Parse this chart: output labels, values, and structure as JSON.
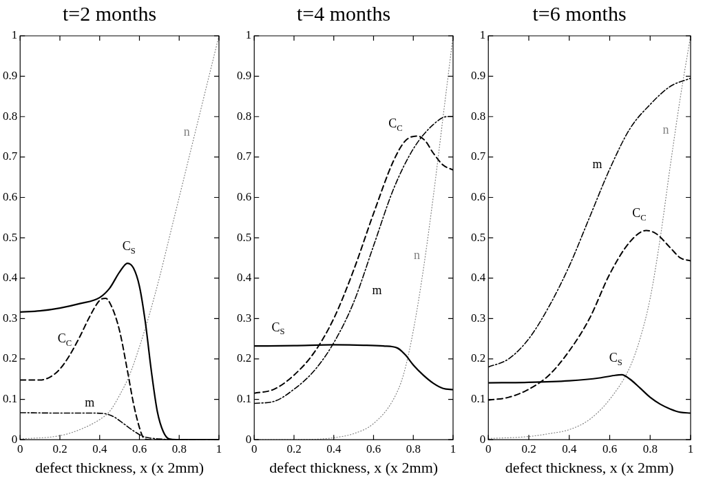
{
  "chart_data": [
    {
      "type": "line",
      "title": "t=2 months",
      "xlabel": "defect thickness, x (x 2mm)",
      "xlim": [
        0,
        1
      ],
      "xticks": [
        0,
        0.2,
        0.4,
        0.6,
        0.8,
        1
      ],
      "ylim": [
        0,
        1
      ],
      "yticks": [
        0,
        0.1,
        0.2,
        0.3,
        0.4,
        0.5,
        0.6,
        0.7,
        0.8,
        0.9,
        1
      ],
      "grid": false,
      "legend": false,
      "marker": "none",
      "series": [
        {
          "name": "C$_{S}$",
          "color": "#000000",
          "line_style": "solid",
          "x": [
            0,
            0.1,
            0.2,
            0.3,
            0.4,
            0.45,
            0.5,
            0.54,
            0.57,
            0.6,
            0.63,
            0.66,
            0.69,
            0.72,
            0.75,
            0.8,
            1
          ],
          "values": [
            0.316,
            0.319,
            0.326,
            0.337,
            0.352,
            0.375,
            0.415,
            0.437,
            0.425,
            0.38,
            0.29,
            0.17,
            0.07,
            0.02,
            0.002,
            0,
            0
          ]
        },
        {
          "name": "C$_{C}$",
          "color": "#000000",
          "line_style": "dashed",
          "x": [
            0,
            0.1,
            0.15,
            0.2,
            0.25,
            0.3,
            0.35,
            0.4,
            0.43,
            0.46,
            0.5,
            0.54,
            0.57,
            0.6,
            0.62,
            0.65,
            1
          ],
          "values": [
            0.148,
            0.148,
            0.155,
            0.175,
            0.21,
            0.255,
            0.305,
            0.345,
            0.35,
            0.33,
            0.27,
            0.17,
            0.09,
            0.03,
            0.005,
            0,
            0
          ]
        },
        {
          "name": "m",
          "color": "#000000",
          "line_style": "dashdot",
          "x": [
            0,
            0.2,
            0.35,
            0.42,
            0.47,
            0.52,
            0.57,
            0.62,
            0.7,
            0.8,
            1
          ],
          "values": [
            0.067,
            0.066,
            0.066,
            0.065,
            0.057,
            0.04,
            0.022,
            0.008,
            0.002,
            0,
            0
          ]
        },
        {
          "name": "n",
          "color": "#808080",
          "line_style": "dotted",
          "x": [
            0,
            0.2,
            0.3,
            0.4,
            0.45,
            0.5,
            0.55,
            0.6,
            0.65,
            0.7,
            0.75,
            0.8,
            0.85,
            0.9,
            0.95,
            1
          ],
          "values": [
            0.002,
            0.01,
            0.025,
            0.05,
            0.07,
            0.11,
            0.16,
            0.23,
            0.31,
            0.4,
            0.5,
            0.6,
            0.7,
            0.8,
            0.9,
            1
          ]
        }
      ]
    },
    {
      "type": "line",
      "title": "t=4 months",
      "xlabel": "defect thickness, x (x 2mm)",
      "xlim": [
        0,
        1
      ],
      "xticks": [
        0,
        0.2,
        0.4,
        0.6,
        0.8,
        1
      ],
      "ylim": [
        0,
        1
      ],
      "yticks": [
        0,
        0.1,
        0.2,
        0.3,
        0.4,
        0.5,
        0.6,
        0.7,
        0.8,
        0.9,
        1
      ],
      "grid": false,
      "legend": false,
      "marker": "none",
      "series": [
        {
          "name": "C$_{S}$",
          "color": "#000000",
          "line_style": "solid",
          "x": [
            0,
            0.2,
            0.4,
            0.55,
            0.65,
            0.72,
            0.76,
            0.8,
            0.85,
            0.9,
            0.95,
            1
          ],
          "values": [
            0.232,
            0.233,
            0.235,
            0.234,
            0.232,
            0.227,
            0.21,
            0.185,
            0.16,
            0.14,
            0.127,
            0.124
          ]
        },
        {
          "name": "C$_{C}$",
          "color": "#000000",
          "line_style": "dashed",
          "x": [
            0,
            0.1,
            0.2,
            0.3,
            0.4,
            0.5,
            0.6,
            0.7,
            0.76,
            0.82,
            0.86,
            0.9,
            0.95,
            1
          ],
          "values": [
            0.115,
            0.125,
            0.16,
            0.215,
            0.3,
            0.42,
            0.56,
            0.69,
            0.74,
            0.752,
            0.74,
            0.71,
            0.68,
            0.668
          ]
        },
        {
          "name": "m",
          "color": "#000000",
          "line_style": "dashdot",
          "x": [
            0,
            0.1,
            0.2,
            0.3,
            0.4,
            0.5,
            0.6,
            0.7,
            0.8,
            0.9,
            0.97,
            1
          ],
          "values": [
            0.09,
            0.095,
            0.125,
            0.17,
            0.24,
            0.34,
            0.48,
            0.62,
            0.72,
            0.78,
            0.8,
            0.8
          ]
        },
        {
          "name": "n",
          "color": "#808080",
          "line_style": "dotted",
          "x": [
            0,
            0.3,
            0.4,
            0.5,
            0.6,
            0.7,
            0.75,
            0.8,
            0.85,
            0.9,
            0.95,
            1
          ],
          "values": [
            0,
            0.001,
            0.005,
            0.015,
            0.04,
            0.1,
            0.16,
            0.27,
            0.42,
            0.6,
            0.8,
            1
          ]
        }
      ]
    },
    {
      "type": "line",
      "title": "t=6 months",
      "xlabel": "defect thickness, x (x 2mm)",
      "xlim": [
        0,
        1
      ],
      "xticks": [
        0,
        0.2,
        0.4,
        0.6,
        0.8,
        1
      ],
      "ylim": [
        0,
        1
      ],
      "yticks": [
        0,
        0.1,
        0.2,
        0.3,
        0.4,
        0.5,
        0.6,
        0.7,
        0.8,
        0.9,
        1
      ],
      "grid": false,
      "legend": false,
      "marker": "none",
      "series": [
        {
          "name": "C$_{S}$",
          "color": "#000000",
          "line_style": "solid",
          "x": [
            0,
            0.2,
            0.4,
            0.55,
            0.62,
            0.66,
            0.7,
            0.75,
            0.8,
            0.85,
            0.9,
            0.95,
            1
          ],
          "values": [
            0.141,
            0.142,
            0.146,
            0.153,
            0.159,
            0.161,
            0.15,
            0.128,
            0.105,
            0.088,
            0.076,
            0.068,
            0.066
          ]
        },
        {
          "name": "C$_{C}$",
          "color": "#000000",
          "line_style": "dashed",
          "x": [
            0,
            0.1,
            0.2,
            0.3,
            0.4,
            0.5,
            0.6,
            0.7,
            0.78,
            0.83,
            0.9,
            0.95,
            1
          ],
          "values": [
            0.098,
            0.105,
            0.125,
            0.16,
            0.22,
            0.3,
            0.41,
            0.49,
            0.518,
            0.51,
            0.475,
            0.45,
            0.443
          ]
        },
        {
          "name": "m",
          "color": "#000000",
          "line_style": "dashdot",
          "x": [
            0,
            0.1,
            0.2,
            0.3,
            0.4,
            0.5,
            0.6,
            0.7,
            0.8,
            0.9,
            1
          ],
          "values": [
            0.18,
            0.2,
            0.25,
            0.33,
            0.43,
            0.55,
            0.67,
            0.77,
            0.83,
            0.875,
            0.895
          ]
        },
        {
          "name": "n",
          "color": "#808080",
          "line_style": "dotted",
          "x": [
            0,
            0.2,
            0.3,
            0.4,
            0.5,
            0.6,
            0.7,
            0.75,
            0.8,
            0.85,
            0.9,
            0.95,
            1
          ],
          "values": [
            0.003,
            0.008,
            0.015,
            0.025,
            0.05,
            0.1,
            0.18,
            0.25,
            0.35,
            0.5,
            0.68,
            0.85,
            1
          ]
        }
      ]
    }
  ]
}
